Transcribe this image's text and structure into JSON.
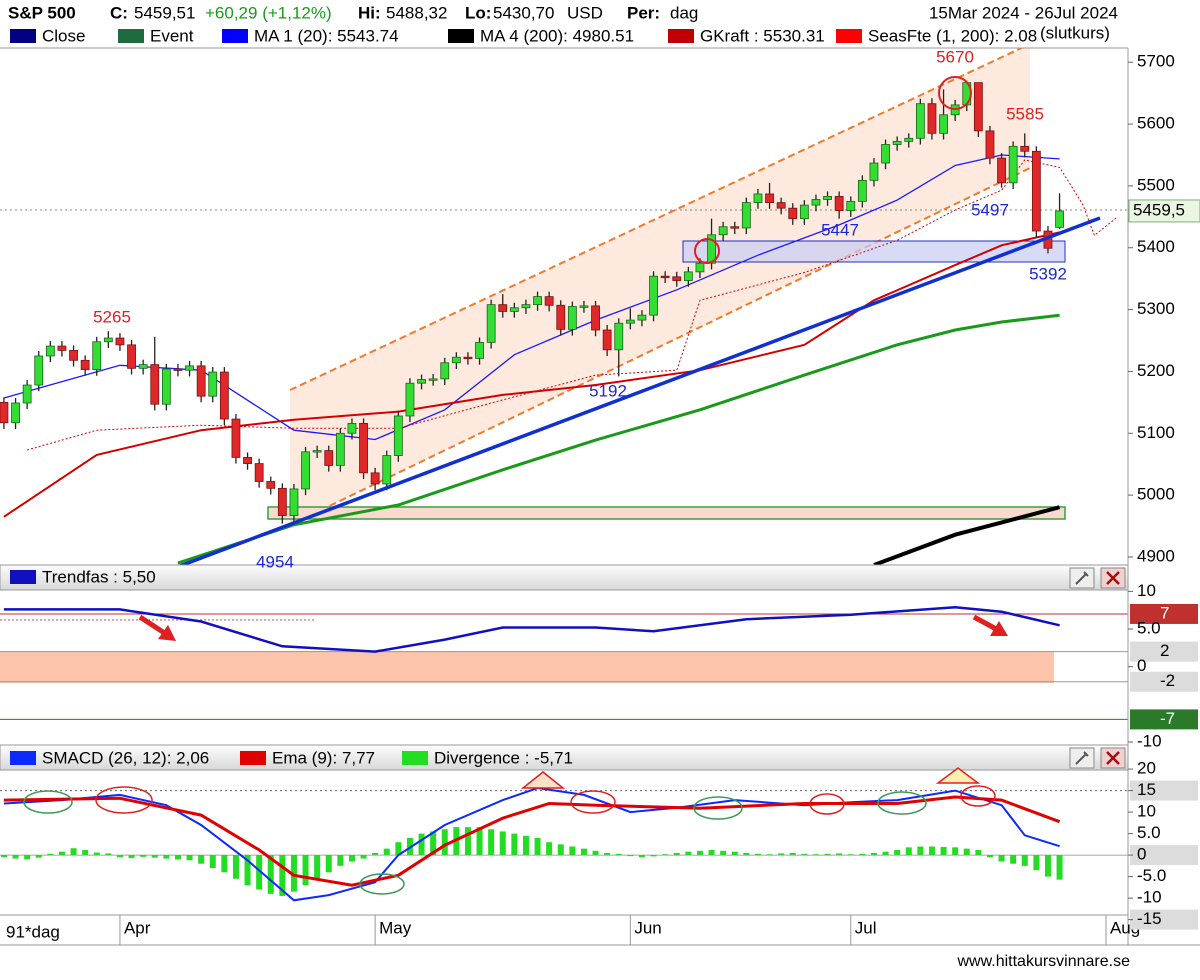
{
  "chart_data": [
    {
      "type": "candlestick",
      "title": "S&P 500",
      "quote": {
        "c_label": "C:",
        "close": "5459,51",
        "change": "+60,29 (+1,12%)",
        "hi_label": "Hi:",
        "high": "5488,32",
        "lo_label": "Lo:",
        "low": "5430,70",
        "currency": "USD",
        "per_label": "Per:",
        "period": "dag"
      },
      "date_range": "15Mar 2024 - 26Jul 2024",
      "note": "(slutkurs)",
      "legend": [
        {
          "label": "Close",
          "color": "#000080"
        },
        {
          "label": "Event",
          "color": "#1e6b40"
        },
        {
          "label": "MA 1 (20): 5543.74",
          "color": "#0000ff"
        },
        {
          "label": "MA 4 (200): 4980.51",
          "color": "#000000"
        },
        {
          "label": "GKraft : 5530.31",
          "color": "#c00000"
        },
        {
          "label": "SeasFte (1, 200): 2.08",
          "color": "#ff0000"
        }
      ],
      "up_color": "#33dd33",
      "down_color": "#e02828",
      "xlim": [
        -0.34,
        96.9
      ],
      "xticks": [
        {
          "value": 10,
          "label": "Apr"
        },
        {
          "value": 32,
          "label": "May"
        },
        {
          "value": 54,
          "label": "Jun"
        },
        {
          "value": 73,
          "label": "Jul"
        },
        {
          "value": 95,
          "label": "Aug"
        }
      ],
      "ylim": [
        4887,
        5723
      ],
      "yticks": [
        4900,
        5000,
        5100,
        5200,
        5300,
        5400,
        5500,
        5600,
        5700
      ],
      "last_label": "5459,5",
      "open": [
        5150,
        5117,
        5149,
        5178,
        5225,
        5241,
        5234,
        5218,
        5203,
        5248,
        5254,
        5243,
        5205,
        5211,
        5147,
        5204,
        5202,
        5209,
        5160,
        5199,
        5123,
        5061,
        5051,
        5022,
        5011,
        4967,
        5010,
        5070,
        5072,
        5048,
        5100,
        5116,
        5036,
        5018,
        5064,
        5128,
        5181,
        5187,
        5188,
        5214,
        5223,
        5221,
        5247,
        5308,
        5297,
        5303,
        5308,
        5321,
        5307,
        5268,
        5305,
        5306,
        5267,
        5235,
        5278,
        5283,
        5291,
        5354,
        5353,
        5347,
        5361,
        5375,
        5421,
        5434,
        5432,
        5473,
        5487,
        5473,
        5464,
        5447,
        5469,
        5478,
        5483,
        5460,
        5475,
        5509,
        5537,
        5567,
        5572,
        5577,
        5633,
        5585,
        5615,
        5631,
        5667,
        5589,
        5545,
        5505,
        5564,
        5556,
        5427,
        5433
      ],
      "high": [
        5158,
        5157,
        5186,
        5233,
        5249,
        5249,
        5242,
        5226,
        5256,
        5265,
        5262,
        5251,
        5219,
        5256,
        5212,
        5212,
        5217,
        5217,
        5207,
        5207,
        5131,
        5069,
        5059,
        5030,
        5019,
        5018,
        5078,
        5080,
        5080,
        5108,
        5124,
        5124,
        5044,
        5072,
        5136,
        5189,
        5195,
        5196,
        5222,
        5231,
        5231,
        5255,
        5316,
        5325,
        5311,
        5316,
        5329,
        5329,
        5315,
        5313,
        5314,
        5314,
        5275,
        5286,
        5302,
        5299,
        5362,
        5362,
        5361,
        5369,
        5383,
        5447,
        5442,
        5442,
        5481,
        5495,
        5505,
        5481,
        5472,
        5477,
        5486,
        5491,
        5491,
        5483,
        5517,
        5545,
        5575,
        5580,
        5585,
        5641,
        5642,
        5656,
        5639,
        5670,
        5660,
        5597,
        5553,
        5572,
        5585,
        5564,
        5435,
        5488
      ],
      "low": [
        5107,
        5107,
        5139,
        5168,
        5215,
        5224,
        5208,
        5193,
        5193,
        5238,
        5233,
        5195,
        5195,
        5137,
        5137,
        5192,
        5192,
        5150,
        5150,
        5113,
        5051,
        5041,
        5012,
        5001,
        4954,
        4957,
        5000,
        5060,
        5038,
        5038,
        5090,
        5026,
        5008,
        5008,
        5054,
        5118,
        5171,
        5177,
        5178,
        5204,
        5211,
        5211,
        5237,
        5287,
        5287,
        5293,
        5298,
        5297,
        5258,
        5258,
        5295,
        5257,
        5225,
        5192,
        5268,
        5273,
        5281,
        5343,
        5337,
        5337,
        5351,
        5365,
        5411,
        5422,
        5422,
        5463,
        5463,
        5454,
        5437,
        5437,
        5459,
        5468,
        5447,
        5450,
        5465,
        5499,
        5527,
        5557,
        5562,
        5567,
        5575,
        5575,
        5605,
        5621,
        5579,
        5535,
        5497,
        5495,
        5546,
        5417,
        5391,
        5430
      ],
      "close": [
        5117,
        5149,
        5178,
        5225,
        5241,
        5234,
        5218,
        5203,
        5248,
        5254,
        5243,
        5205,
        5211,
        5147,
        5204,
        5202,
        5209,
        5160,
        5199,
        5123,
        5061,
        5051,
        5022,
        5011,
        4967,
        5010,
        5070,
        5072,
        5048,
        5100,
        5116,
        5036,
        5018,
        5064,
        5128,
        5181,
        5187,
        5188,
        5214,
        5223,
        5221,
        5247,
        5308,
        5297,
        5303,
        5308,
        5321,
        5307,
        5268,
        5305,
        5306,
        5267,
        5235,
        5278,
        5283,
        5291,
        5354,
        5353,
        5347,
        5361,
        5375,
        5421,
        5434,
        5432,
        5473,
        5487,
        5473,
        5464,
        5447,
        5469,
        5478,
        5483,
        5460,
        5475,
        5509,
        5537,
        5567,
        5572,
        5577,
        5633,
        5585,
        5615,
        5631,
        5667,
        5589,
        5545,
        5505,
        5564,
        5556,
        5427,
        5399.22,
        5459.51
      ],
      "lines": [
        {
          "color": "#1a1aff",
          "width": 1.3,
          "dash": "",
          "x": [
            0,
            10,
            17,
            25,
            32,
            38,
            44,
            51,
            58,
            65,
            72,
            77,
            82,
            86,
            91
          ],
          "values": [
            5157,
            5210,
            5202,
            5105,
            5090,
            5138,
            5227,
            5283,
            5332,
            5388,
            5437,
            5477,
            5533,
            5550,
            5543.74
          ]
        },
        {
          "color": "#d40000",
          "width": 2,
          "dash": "",
          "x": [
            0,
            8,
            17,
            25,
            34,
            43,
            51,
            60,
            69,
            75,
            82,
            86,
            91
          ],
          "values": [
            4965,
            5065,
            5105,
            5122,
            5135,
            5162,
            5178,
            5202,
            5243,
            5315,
            5372,
            5404,
            5425
          ]
        },
        {
          "color": "#1a9a1a",
          "width": 3,
          "dash": "",
          "x": [
            15,
            25,
            34,
            43,
            51,
            60,
            69,
            77,
            82,
            86,
            91
          ],
          "values": [
            4890,
            4952,
            4984,
            5041,
            5089,
            5138,
            5194,
            5243,
            5267,
            5280,
            5291
          ]
        },
        {
          "color": "#000000",
          "width": 4,
          "dash": "",
          "x": [
            75,
            82,
            91
          ],
          "values": [
            4887,
            4936,
            4980.51
          ]
        },
        {
          "color": "#e00000",
          "width": 1,
          "dash": "2 2",
          "x": [
            2,
            8,
            17,
            25,
            34,
            43,
            51,
            58,
            60,
            69,
            77,
            82,
            86,
            88,
            91,
            93,
            94,
            96
          ],
          "values": [
            5073,
            5105,
            5113,
            5108,
            5108,
            5154,
            5194,
            5202,
            5315,
            5360,
            5412,
            5461,
            5493,
            5542,
            5530,
            5470,
            5420,
            5450
          ]
        }
      ],
      "annotations": [
        "5670",
        "5585",
        "5265",
        "5192",
        "5447",
        "5497",
        "5392",
        "4954"
      ]
    },
    {
      "type": "line",
      "title": "Trendfas : 5,50",
      "ylim": [
        -10.4,
        13.5
      ],
      "yticks": [
        10,
        {
          "value": 5,
          "label": "5.0"
        },
        0,
        -10
      ],
      "levels": [
        {
          "value": 7,
          "color": "#c0302f"
        },
        {
          "value": 2,
          "color": "#9a9a9a"
        },
        {
          "value": -2,
          "color": "#9a9a9a"
        },
        {
          "value": -7,
          "color": "#2a7a2a"
        }
      ],
      "series": [
        {
          "name": "Trendfas",
          "color": "#1010c0",
          "x": [
            0,
            10,
            17,
            24,
            32,
            38,
            43,
            51,
            56,
            64,
            73,
            82,
            86,
            91
          ],
          "values": [
            7.6,
            7.6,
            6,
            2.7,
            2,
            3.6,
            5.2,
            5.2,
            4.7,
            6.3,
            6.9,
            7.9,
            7.3,
            5.5
          ]
        }
      ]
    },
    {
      "type": "macd",
      "ylim": [
        -20.9,
        25.6
      ],
      "yticks": [
        20,
        15,
        10,
        {
          "value": 5,
          "label": "5.0"
        },
        0,
        {
          "value": -5,
          "label": "-5.0"
        },
        -10,
        -15
      ],
      "level": 15,
      "series": [
        {
          "name": "SMACD (26, 12): 2,06",
          "color": "#0a2aff",
          "x": [
            0,
            5,
            10,
            14,
            17,
            21,
            25,
            28,
            32,
            34,
            38,
            43,
            46,
            50,
            54,
            58,
            63,
            69,
            73,
            77,
            82,
            86,
            88,
            91
          ],
          "values": [
            12,
            12.8,
            14,
            11.6,
            7,
            -1.2,
            -10.5,
            -9.3,
            -6.3,
            0,
            7,
            12.8,
            15.6,
            14,
            10,
            11,
            12.8,
            11.6,
            12.3,
            12.8,
            15,
            11.6,
            4.6,
            2.06
          ]
        },
        {
          "name": "Ema (9): 7,77",
          "color": "#e00000",
          "x": [
            0,
            10,
            17,
            22,
            25,
            30,
            34,
            38,
            43,
            47,
            51,
            60,
            69,
            77,
            82,
            86,
            91
          ],
          "values": [
            12.8,
            13.2,
            9.3,
            1.2,
            -4.7,
            -7,
            -4.7,
            2.3,
            8.6,
            12,
            11.6,
            10.9,
            12,
            12,
            13.5,
            12.8,
            7.77
          ]
        },
        {
          "name": "Divergence : -5,71",
          "color": "#22dd22",
          "values": [
            -0.5,
            -0.8,
            -1,
            -0.6,
            0.3,
            0.8,
            1.6,
            1.2,
            0.6,
            0.4,
            -0.5,
            -0.7,
            -0.4,
            -0.6,
            -0.8,
            -1,
            -1.2,
            -2,
            -3,
            -4,
            -5.5,
            -7,
            -8,
            -9,
            -9.5,
            -8.5,
            -7,
            -5.5,
            -4,
            -2.5,
            -1.5,
            -0.8,
            0.5,
            1.5,
            3,
            4,
            5,
            5.5,
            6,
            6.5,
            6.5,
            6.5,
            6,
            5.5,
            5,
            4.5,
            4,
            3,
            2.5,
            2,
            1.5,
            1,
            0.5,
            0.3,
            -0.2,
            -0.5,
            -0.3,
            0.2,
            0.5,
            0.8,
            1,
            1.2,
            1,
            0.8,
            0.5,
            0.3,
            0.2,
            0.4,
            0.5,
            0.3,
            0.2,
            0.3,
            0.4,
            0.2,
            0.3,
            0.5,
            0.8,
            1.2,
            1.8,
            2,
            2,
            1.9,
            1.8,
            1.5,
            1.2,
            -0.5,
            -1.5,
            -2,
            -2.5,
            -3.5,
            -5,
            -5.71
          ]
        }
      ]
    }
  ],
  "footer": {
    "period": "91*dag",
    "source": "www.hittakursvinnare.se"
  }
}
